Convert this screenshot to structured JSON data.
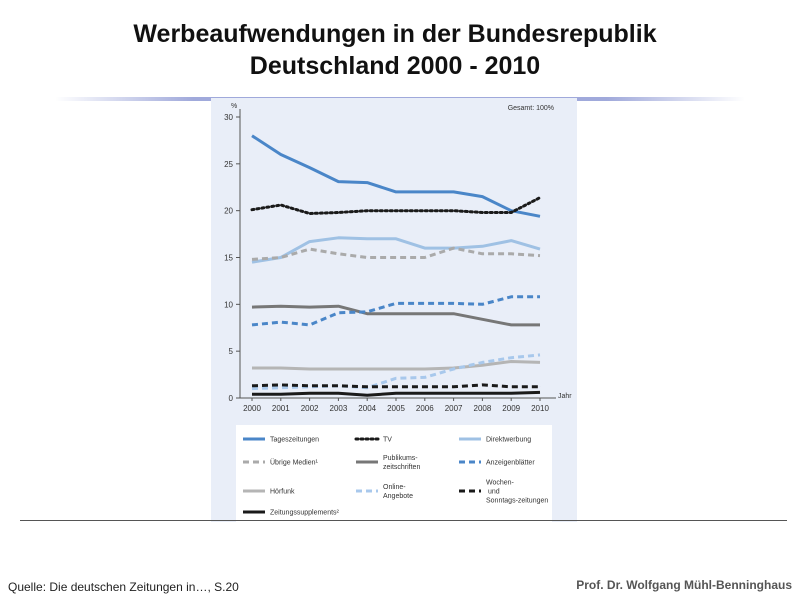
{
  "slide": {
    "title_line1": "Werbeaufwendungen in der Bundesrepublik",
    "title_line2": "Deutschland 2000  - 2010",
    "source": "Quelle: Die deutschen Zeitungen  in…, S.20",
    "author": "Prof. Dr. Wolfgang Mühl-Benninghaus"
  },
  "chart_data": {
    "type": "line",
    "ylabel": "%",
    "xlabel": "Jahr",
    "annotation": "Gesamt: 100%",
    "x": [
      "2000",
      "2001",
      "2002",
      "2003",
      "2004",
      "2005",
      "2006",
      "2007",
      "2008",
      "2009",
      "2010"
    ],
    "ylim": [
      0,
      30
    ],
    "yticks": [
      0,
      5,
      10,
      15,
      20,
      25,
      30
    ],
    "series": [
      {
        "name": "Tageszeitungen",
        "color": "#4a86c8",
        "style": "solid",
        "values": [
          28,
          26,
          24.6,
          23.1,
          23,
          22,
          22,
          22,
          21.5,
          20,
          19.4
        ]
      },
      {
        "name": "TV",
        "color": "#1a1a1a",
        "style": "dotted",
        "values": [
          20.1,
          20.6,
          19.7,
          19.8,
          20,
          20,
          20,
          20,
          19.8,
          19.8,
          21.4
        ]
      },
      {
        "name": "Direktwerbung",
        "color": "#9fc1e4",
        "style": "solid",
        "values": [
          14.5,
          15,
          16.7,
          17.1,
          17,
          17,
          16,
          16,
          16.2,
          16.8,
          15.9
        ]
      },
      {
        "name": "Übrige Medien¹",
        "color": "#aaaaaa",
        "style": "dashed",
        "values": [
          14.8,
          15,
          15.9,
          15.4,
          15,
          15,
          15,
          16,
          15.4,
          15.4,
          15.2
        ]
      },
      {
        "name": "Publikums-zeitschriften",
        "color": "#777777",
        "style": "solid",
        "values": [
          9.7,
          9.8,
          9.7,
          9.8,
          9,
          9,
          9,
          9,
          8.4,
          7.8,
          7.8
        ]
      },
      {
        "name": "Anzeigenblätter",
        "color": "#4a86c8",
        "style": "dashed",
        "values": [
          7.8,
          8.1,
          7.8,
          9.1,
          9.2,
          10.1,
          10.1,
          10.1,
          10,
          10.8,
          10.8
        ]
      },
      {
        "name": "Hörfunk",
        "color": "#b5b5b5",
        "style": "solid",
        "values": [
          3.2,
          3.2,
          3.1,
          3.1,
          3.1,
          3.1,
          3.1,
          3.2,
          3.5,
          3.9,
          3.8
        ]
      },
      {
        "name": "Online-Angebote",
        "color": "#a8c8ec",
        "style": "dashed",
        "values": [
          1,
          1.1,
          1.2,
          1.3,
          1.1,
          2.1,
          2.2,
          3.1,
          3.8,
          4.3,
          4.6
        ]
      },
      {
        "name": "Wochen- und Sonntags-zeitungen",
        "color": "#1a1a1a",
        "style": "dashed",
        "values": [
          1.3,
          1.4,
          1.3,
          1.3,
          1.2,
          1.2,
          1.2,
          1.2,
          1.4,
          1.2,
          1.2
        ]
      },
      {
        "name": "Zeitungssupplements²",
        "color": "#1a1a1a",
        "style": "solid",
        "values": [
          0.4,
          0.4,
          0.5,
          0.5,
          0.3,
          0.5,
          0.5,
          0.5,
          0.5,
          0.5,
          0.6
        ]
      }
    ],
    "grid": false,
    "legend_position": "bottom"
  }
}
